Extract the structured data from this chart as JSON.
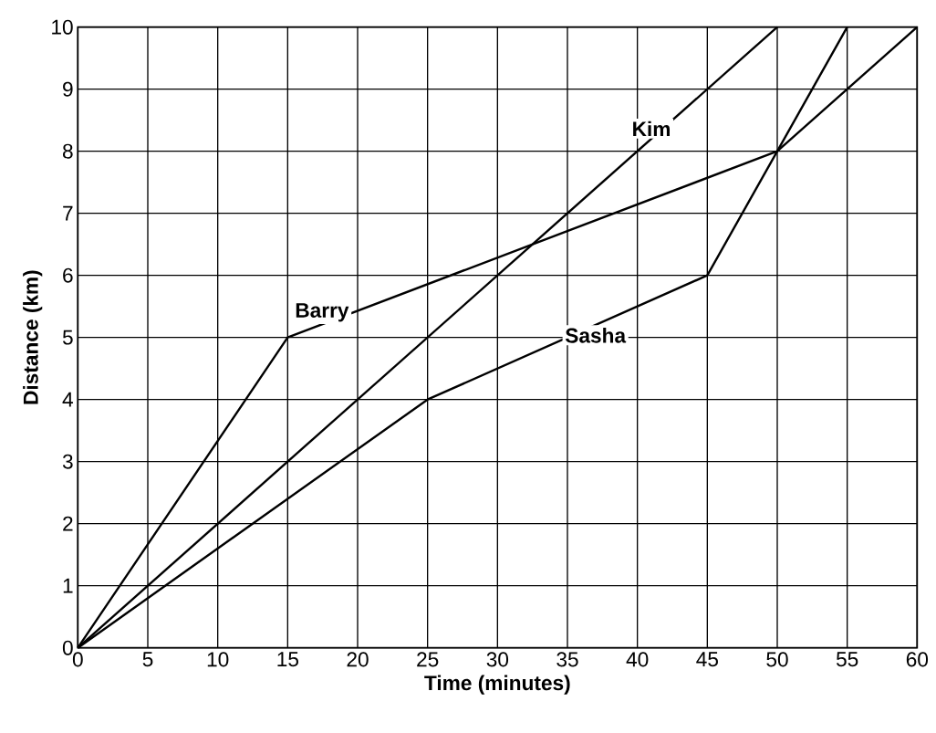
{
  "chart_data": {
    "type": "line",
    "xlabel": "Time (minutes)",
    "ylabel": "Distance (km)",
    "xlim": [
      0,
      60
    ],
    "xticks": [
      0,
      5,
      10,
      15,
      20,
      25,
      30,
      35,
      40,
      45,
      50,
      55,
      60
    ],
    "ylim": [
      0,
      10
    ],
    "yticks": [
      0,
      1,
      2,
      3,
      4,
      5,
      6,
      7,
      8,
      9,
      10
    ],
    "grid": true,
    "legend": false,
    "marker": "none",
    "line_style": "solid",
    "series": [
      {
        "name": "Barry",
        "color": "#000000",
        "x": [
          0,
          15,
          50,
          60
        ],
        "values": [
          0,
          5,
          8,
          10
        ]
      },
      {
        "name": "Kim",
        "color": "#000000",
        "x": [
          0,
          50
        ],
        "values": [
          0,
          10
        ]
      },
      {
        "name": "Sasha",
        "color": "#000000",
        "x": [
          0,
          25,
          45,
          50,
          55
        ],
        "values": [
          0,
          4,
          6,
          8,
          10
        ]
      }
    ]
  }
}
